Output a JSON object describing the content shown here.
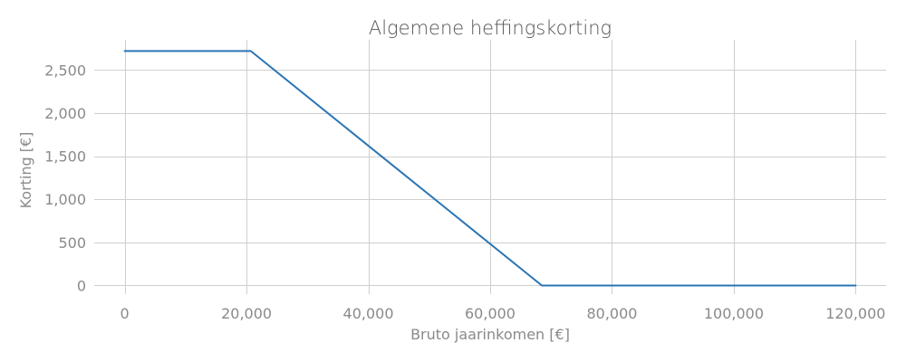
{
  "chart_data": {
    "type": "line",
    "title": "Algemene heffingskorting",
    "xlabel": "Bruto jaarinkomen [€]",
    "ylabel": "Korting [€]",
    "xlim": [
      -5000,
      125000
    ],
    "ylim": [
      -100,
      2850
    ],
    "x_ticks": [
      0,
      20000,
      40000,
      60000,
      80000,
      100000,
      120000
    ],
    "x_tick_labels": [
      "0",
      "20,000",
      "40,000",
      "60,000",
      "80,000",
      "100,000",
      "120,000"
    ],
    "y_ticks": [
      0,
      500,
      1000,
      1500,
      2000,
      2500
    ],
    "y_tick_labels": [
      "0",
      "500",
      "1,000",
      "1,500",
      "2,000",
      "2,500"
    ],
    "grid": true,
    "series": [
      {
        "color": "#2a74b4",
        "x": [
          0,
          20700,
          68500,
          120000
        ],
        "y": [
          2720,
          2720,
          0,
          0
        ]
      }
    ]
  }
}
